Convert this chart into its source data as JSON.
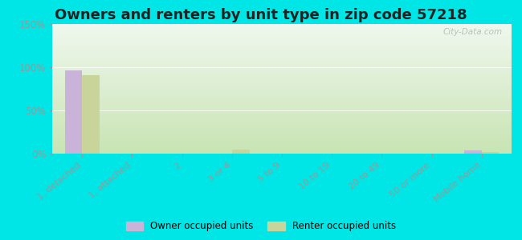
{
  "title": "Owners and renters by unit type in zip code 57218",
  "categories": [
    "1, detached",
    "1, attached",
    "2",
    "3 or 4",
    "5 to 9",
    "10 to 19",
    "20 to 49",
    "50 or more",
    "Mobile home"
  ],
  "owner_values": [
    96,
    0,
    0,
    0,
    0,
    0,
    0,
    0,
    4
  ],
  "renter_values": [
    91,
    0,
    0,
    5,
    0,
    0,
    0,
    0,
    2
  ],
  "owner_color": "#c9b3d9",
  "renter_color": "#c8d49a",
  "bar_width": 0.35,
  "ylim": [
    0,
    150
  ],
  "yticks": [
    0,
    50,
    100,
    150
  ],
  "ytick_labels": [
    "0%",
    "50%",
    "100%",
    "150%"
  ],
  "bg_top_color": "#f0f8ee",
  "bg_bottom_color": "#d8eecc",
  "outer_background": "#00e5e5",
  "title_fontsize": 13,
  "watermark": "City-Data.com",
  "legend_owner": "Owner occupied units",
  "legend_renter": "Renter occupied units",
  "grid_color": "#ddeecc",
  "tick_color": "#999999",
  "label_color": "#999999"
}
